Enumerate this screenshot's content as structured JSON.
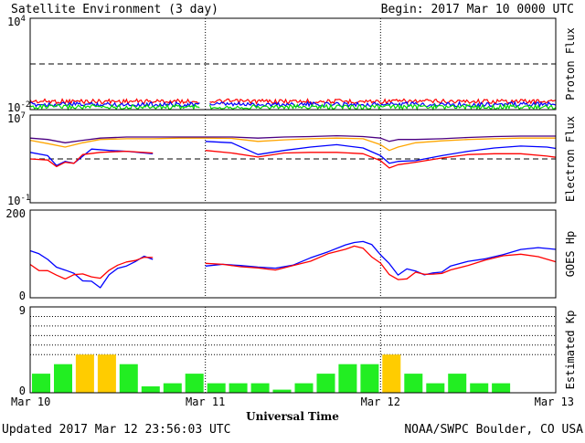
{
  "header": {
    "title": "Satellite Environment (3 day)",
    "begin": "Begin:  2017 Mar 10 0000 UTC"
  },
  "footer": {
    "updated": "Updated 2017 Mar 12 23:56:03 UTC",
    "credit": "NOAA/SWPC Boulder, CO USA"
  },
  "chart_data": [
    {
      "type": "line",
      "name": "proton-flux",
      "ylabel": "Proton Flux",
      "scale": "log",
      "ylim": [
        0.01,
        10000
      ],
      "ytick_labels": [
        {
          "value": 10000,
          "base": "10",
          "exp": "4"
        },
        {
          "value": 0.01,
          "base": "10",
          "exp": "-2"
        }
      ],
      "threshold": 10,
      "x_unit": "day",
      "xlim": [
        0,
        3
      ],
      "data_gaps": [
        [
          0.97,
          1.02
        ]
      ],
      "series": [
        {
          "color": "#ff0000",
          "values": [
            0.035,
            0.035
          ]
        },
        {
          "color": "#0000ff",
          "values": [
            0.022,
            0.022
          ]
        },
        {
          "color": "#00dd00",
          "values": [
            0.015,
            0.015
          ]
        }
      ]
    },
    {
      "type": "line",
      "name": "electron-flux",
      "ylabel": "Electron Flux",
      "scale": "log",
      "ylim": [
        0.1,
        10000000
      ],
      "ytick_labels": [
        {
          "value": 10000000,
          "base": "10",
          "exp": "7"
        },
        {
          "value": 0.1,
          "base": "10",
          "exp": "-1"
        }
      ],
      "threshold": 1000,
      "x_unit": "day",
      "xlim": [
        0,
        3
      ],
      "series": [
        {
          "color": "#ffa500",
          "x": [
            0,
            0.1,
            0.2,
            0.3,
            0.4,
            0.55,
            0.7,
            0.85,
            1.0,
            1.15,
            1.3,
            1.45,
            1.6,
            1.75,
            1.9,
            2.0,
            2.05,
            2.1,
            2.2,
            2.35,
            2.5,
            2.65,
            2.8,
            2.95,
            3.0
          ],
          "values": [
            50000,
            25000,
            12000,
            30000,
            60000,
            70000,
            70000,
            80000,
            80000,
            75000,
            40000,
            55000,
            70000,
            80000,
            70000,
            20000,
            6000,
            12000,
            30000,
            45000,
            60000,
            70000,
            80000,
            80000,
            80000
          ]
        },
        {
          "color": "#4b0082",
          "x": [
            0,
            0.1,
            0.2,
            0.3,
            0.4,
            0.55,
            0.7,
            0.85,
            1.0,
            1.15,
            1.3,
            1.45,
            1.6,
            1.75,
            1.9,
            2.0,
            2.05,
            2.1,
            2.2,
            2.35,
            2.5,
            2.65,
            2.8,
            2.95,
            3.0
          ],
          "values": [
            80000,
            60000,
            30000,
            50000,
            80000,
            100000,
            100000,
            100000,
            100000,
            100000,
            80000,
            100000,
            110000,
            130000,
            110000,
            80000,
            40000,
            60000,
            60000,
            70000,
            90000,
            110000,
            120000,
            120000,
            120000
          ]
        },
        {
          "color": "#0000ff",
          "x": [
            0,
            0.1,
            0.15,
            0.2,
            0.25,
            0.35,
            0.45,
            0.55,
            0.65,
            0.7
          ],
          "values": [
            4000,
            2000,
            250,
            600,
            400,
            8000,
            6000,
            5000,
            3500,
            3000
          ]
        },
        {
          "color": "#ff0000",
          "x": [
            0,
            0.1,
            0.15,
            0.2,
            0.25,
            0.3,
            0.4,
            0.55,
            0.7
          ],
          "values": [
            1000,
            800,
            200,
            500,
            400,
            2500,
            4000,
            5000,
            3500
          ]
        },
        {
          "color": "#0000ff",
          "x": [
            1.0,
            1.15,
            1.3,
            1.45,
            1.6,
            1.75,
            1.9,
            2.0,
            2.05,
            2.1,
            2.2,
            2.35,
            2.5,
            2.65,
            2.8,
            2.95,
            3.0
          ],
          "values": [
            40000,
            30000,
            2500,
            6000,
            12000,
            20000,
            10000,
            2000,
            400,
            600,
            700,
            2000,
            5000,
            10000,
            15000,
            12000,
            9000
          ]
        },
        {
          "color": "#ff0000",
          "x": [
            1.0,
            1.15,
            1.3,
            1.45,
            1.6,
            1.75,
            1.9,
            2.0,
            2.05,
            2.1,
            2.2,
            2.35,
            2.5,
            2.65,
            2.8,
            2.95,
            3.0
          ],
          "values": [
            6000,
            3500,
            1500,
            3500,
            4000,
            4000,
            3000,
            700,
            150,
            300,
            500,
            1200,
            2500,
            3000,
            3000,
            1800,
            1400
          ]
        }
      ]
    },
    {
      "type": "line",
      "name": "goes-hp",
      "ylabel": "GOES Hp",
      "scale": "linear",
      "ylim": [
        0,
        200
      ],
      "ytick_labels": [
        {
          "value": 200,
          "text": "200"
        },
        {
          "value": 0,
          "text": "0"
        }
      ],
      "x_unit": "day",
      "xlim": [
        0,
        3
      ],
      "series": [
        {
          "color": "#0000ff",
          "x": [
            0,
            0.05,
            0.1,
            0.15,
            0.2,
            0.25,
            0.3,
            0.35,
            0.4,
            0.45,
            0.5,
            0.55,
            0.6,
            0.65,
            0.7
          ],
          "values": [
            105,
            98,
            90,
            70,
            65,
            55,
            40,
            35,
            25,
            55,
            65,
            75,
            80,
            95,
            90
          ]
        },
        {
          "color": "#ff0000",
          "x": [
            0,
            0.05,
            0.1,
            0.15,
            0.2,
            0.25,
            0.3,
            0.35,
            0.4,
            0.45,
            0.5,
            0.55,
            0.6,
            0.65,
            0.7
          ],
          "values": [
            75,
            65,
            60,
            50,
            40,
            50,
            55,
            50,
            45,
            60,
            75,
            80,
            85,
            90,
            90
          ]
        },
        {
          "color": "#0000ff",
          "x": [
            1.0,
            1.1,
            1.2,
            1.3,
            1.4,
            1.5,
            1.6,
            1.7,
            1.8,
            1.85,
            1.9,
            1.95,
            2.0,
            2.05,
            2.1,
            2.15,
            2.2,
            2.25,
            2.3,
            2.35,
            2.4,
            2.5,
            2.6,
            2.7,
            2.8,
            2.9,
            3.0
          ],
          "values": [
            75,
            75,
            73,
            70,
            65,
            75,
            90,
            105,
            120,
            125,
            130,
            120,
            100,
            80,
            55,
            65,
            60,
            50,
            55,
            60,
            70,
            80,
            90,
            100,
            110,
            115,
            110
          ]
        },
        {
          "color": "#ff0000",
          "x": [
            1.0,
            1.1,
            1.2,
            1.3,
            1.4,
            1.5,
            1.6,
            1.7,
            1.8,
            1.85,
            1.9,
            1.95,
            2.0,
            2.05,
            2.1,
            2.15,
            2.2,
            2.25,
            2.3,
            2.35,
            2.4,
            2.5,
            2.6,
            2.7,
            2.8,
            2.9,
            3.0
          ],
          "values": [
            80,
            78,
            74,
            70,
            62,
            72,
            85,
            100,
            112,
            115,
            112,
            95,
            80,
            55,
            40,
            45,
            60,
            55,
            52,
            55,
            65,
            75,
            85,
            95,
            100,
            95,
            85
          ]
        }
      ]
    },
    {
      "type": "bar",
      "name": "estimated-kp",
      "ylabel": "Estimated Kp",
      "ylim": [
        0,
        9
      ],
      "ytick_labels": [
        {
          "value": 9,
          "text": "9"
        },
        {
          "value": 0,
          "text": "0"
        }
      ],
      "reference_lines": [
        4,
        5,
        6,
        7,
        8,
        9
      ],
      "bar_width_hours": 3,
      "values": [
        2,
        3,
        4,
        4,
        3,
        0.67,
        1,
        2,
        1,
        1,
        1,
        0.33,
        1,
        2,
        3,
        3,
        4,
        2,
        1,
        2,
        1,
        1
      ],
      "colors": [
        "#22ee22",
        "#22ee22",
        "#ffcc00",
        "#ffcc00",
        "#22ee22",
        "#22ee22",
        "#22ee22",
        "#22ee22",
        "#22ee22",
        "#22ee22",
        "#22ee22",
        "#22ee22",
        "#22ee22",
        "#22ee22",
        "#22ee22",
        "#22ee22",
        "#ffcc00",
        "#22ee22",
        "#22ee22",
        "#22ee22",
        "#22ee22",
        "#22ee22"
      ]
    }
  ],
  "xaxis": {
    "label": "Universal Time",
    "ticks": [
      {
        "value": 0,
        "text": "Mar 10"
      },
      {
        "value": 1,
        "text": "Mar 11"
      },
      {
        "value": 2,
        "text": "Mar 12"
      },
      {
        "value": 3,
        "text": "Mar 13"
      }
    ],
    "day_dividers": [
      1,
      2
    ]
  }
}
